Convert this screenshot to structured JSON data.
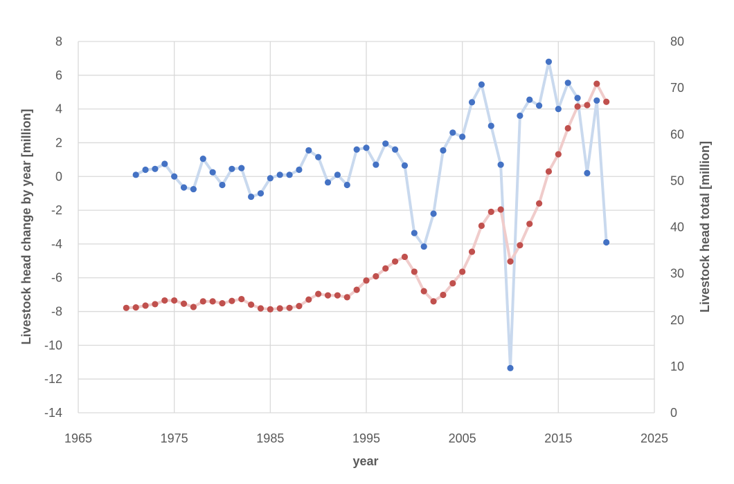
{
  "colors": {
    "change_series": "#4472c4",
    "change_line": "#c9d9ee",
    "total_series": "#c0504d",
    "total_line": "#f0cccb",
    "grid": "#d9d9d9",
    "text": "#595959"
  },
  "chart_data": {
    "type": "line",
    "xlabel": "year",
    "ylabel": "Livestock head change by year [million]",
    "y2label": "Livestock head total [million]",
    "xlim": [
      1965,
      2025
    ],
    "ylim": [
      -14,
      8
    ],
    "y2lim": [
      0,
      80
    ],
    "x_ticks": [
      1965,
      1975,
      1985,
      1995,
      2005,
      2015,
      2025
    ],
    "y_ticks": [
      -14,
      -12,
      -10,
      -8,
      -6,
      -4,
      -2,
      0,
      2,
      4,
      6,
      8
    ],
    "y2_ticks": [
      0,
      10,
      20,
      30,
      40,
      50,
      60,
      70,
      80
    ],
    "grid": true,
    "legend": false,
    "series": [
      {
        "axis": "left",
        "x": [
          1971,
          1972,
          1973,
          1974,
          1975,
          1976,
          1977,
          1978,
          1979,
          1980,
          1981,
          1982,
          1983,
          1984,
          1985,
          1986,
          1987,
          1988,
          1989,
          1990,
          1991,
          1992,
          1993,
          1994,
          1995,
          1996,
          1997,
          1998,
          1999,
          2000,
          2001,
          2002,
          2003,
          2004,
          2005,
          2006,
          2007,
          2008,
          2009,
          2010,
          2011,
          2012,
          2013,
          2014,
          2015,
          2016,
          2017,
          2018,
          2019,
          2020
        ],
        "values": [
          0.1,
          0.4,
          0.45,
          0.75,
          0.0,
          -0.65,
          -0.75,
          1.05,
          0.25,
          -0.5,
          0.45,
          0.5,
          -1.2,
          -1.0,
          -0.1,
          0.1,
          0.1,
          0.4,
          1.55,
          1.15,
          -0.35,
          0.1,
          -0.5,
          1.6,
          1.7,
          0.7,
          1.95,
          1.6,
          0.65,
          -3.35,
          -4.15,
          -2.2,
          1.55,
          2.6,
          2.35,
          4.4,
          5.45,
          3.0,
          0.7,
          -11.35,
          3.6,
          4.55,
          4.2,
          6.8,
          4.0,
          5.55,
          4.65,
          0.2,
          4.5,
          -3.9
        ]
      },
      {
        "axis": "right",
        "x": [
          1970,
          1971,
          1972,
          1973,
          1974,
          1975,
          1976,
          1977,
          1978,
          1979,
          1980,
          1981,
          1982,
          1983,
          1984,
          1985,
          1986,
          1987,
          1988,
          1989,
          1990,
          1991,
          1992,
          1993,
          1994,
          1995,
          1996,
          1997,
          1998,
          1999,
          2000,
          2001,
          2002,
          2003,
          2004,
          2005,
          2006,
          2007,
          2008,
          2009,
          2010,
          2011,
          2012,
          2013,
          2014,
          2015,
          2016,
          2017,
          2018,
          2019,
          2020
        ],
        "values": [
          22.6,
          22.7,
          23.1,
          23.4,
          24.2,
          24.2,
          23.5,
          22.8,
          24.0,
          24.0,
          23.6,
          24.1,
          24.5,
          23.3,
          22.5,
          22.3,
          22.5,
          22.6,
          23.0,
          24.4,
          25.6,
          25.3,
          25.3,
          24.9,
          26.5,
          28.5,
          29.4,
          31.1,
          32.6,
          33.6,
          30.4,
          26.2,
          24.0,
          25.4,
          27.9,
          30.4,
          34.7,
          40.3,
          43.3,
          43.8,
          32.6,
          36.1,
          40.7,
          45.1,
          52.0,
          55.7,
          61.3,
          66.0,
          66.3,
          70.9,
          67.0
        ]
      }
    ]
  }
}
